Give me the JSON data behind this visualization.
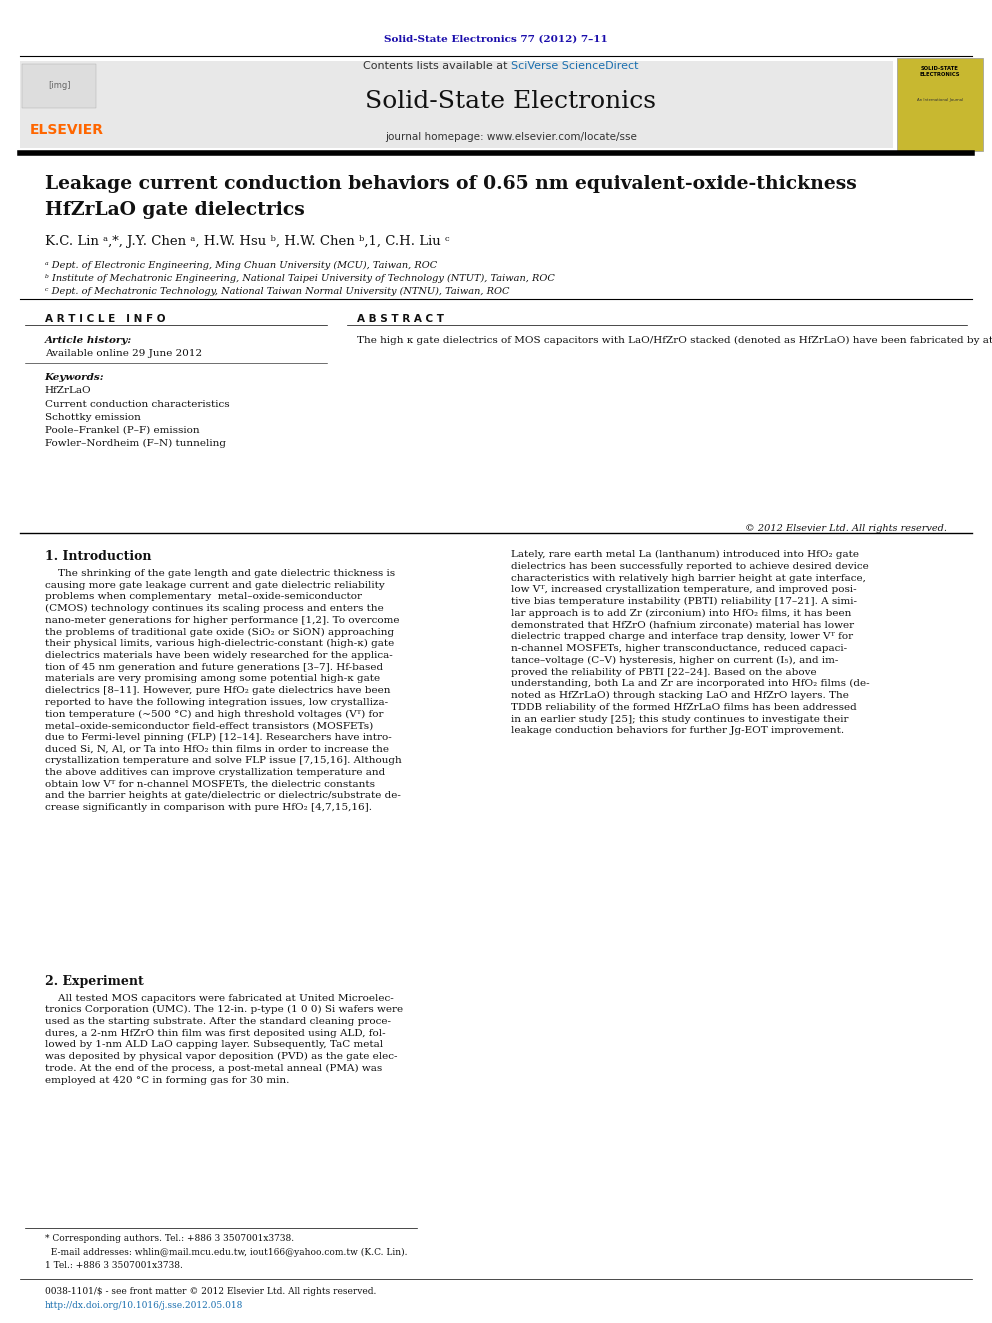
{
  "page_width": 9.92,
  "page_height": 13.23,
  "bg_color": "#ffffff",
  "journal_ref": "Solid-State Electronics 77 (2012) 7–11",
  "journal_ref_color": "#1a0dab",
  "contents_text": "Contents lists available at ",
  "sciverse_text": "SciVerse ScienceDirect",
  "sciverse_color": "#1a6faf",
  "journal_name": "Solid-State Electronics",
  "journal_homepage": "journal homepage: www.elsevier.com/locate/sse",
  "header_bg": "#e8e8e8",
  "elsevier_color": "#ff6600",
  "paper_title_line1": "Leakage current conduction behaviors of 0.65 nm equivalent-oxide-thickness",
  "paper_title_line2": "HfZrLaO gate dielectrics",
  "authors": "K.C. Lin ᵃ,*, J.Y. Chen ᵃ, H.W. Hsu ᵇ, H.W. Chen ᵇ,1, C.H. Liu ᶜ",
  "affil_a": "ᵃ Dept. of Electronic Engineering, Ming Chuan University (MCU), Taiwan, ROC",
  "affil_b": "ᵇ Institute of Mechatronic Engineering, National Taipei University of Technology (NTUT), Taiwan, ROC",
  "affil_c": "ᶜ Dept. of Mechatronic Technology, National Taiwan Normal University (NTNU), Taiwan, ROC",
  "article_info_header": "ARTICLE INFO",
  "abstract_header": "ABSTRACT",
  "article_history_label": "Article history:",
  "available_online": "Available online 29 June 2012",
  "keywords_label": "Keywords:",
  "keywords": [
    "HfZrLaO",
    "Current conduction characteristics",
    "Schottky emission",
    "Poole–Frankel (P–F) emission",
    "Fowler–Nordheim (F–N) tunneling"
  ],
  "abstract_text": "The high κ gate dielectrics of MOS capacitors with LaO/HfZrO stacked (denoted as HfZrLaO) have been fabricated by atomic-layer-deposited (ALD). In this study, the data show that the gate leakage current density (J₉) is about 1.9 A/cm², and the equivalent oxide thickness (EOT) is about 0.65 nm with quantum effects taken into account. The analysis of the leakage current conduction characteristics is based on the temperature dependence of the leakage current from 300 to 475 K. The dominant current conduction behaviors are Schottky emission in the region of low electric fields (<1 MV/cm) and high temperatures (450–475 K), Poole–Frankel (P–F) emission in the region of medium electric fields (2.3–3.83 MV/cm) and low temperatures (300–350 K), and Fowler–Nordheim (F–N) tunneling in the region of high electric fields (>4 MV/cm) and low temperatures (<300 K). The electron barrier height (Φʙ) at gate interface and the trap energy level (Φₜ) in the dielectric are extracted to be 1.07 and 1.38 eV, respectively.",
  "copyright": "© 2012 Elsevier Ltd. All rights reserved.",
  "intro_header": "1. Introduction",
  "intro_col1": "The shrinking of the gate length and gate dielectric thickness is\ncausing more gate leakage current and gate dielectric reliability\nproblems when complementary  metal–oxide-semiconductor\n(CMOS) technology continues its scaling process and enters the\nnano-meter generations for higher performance [1,2]. To overcome\nthe problems of traditional gate oxide (SiO₂ or SiON) approaching\ntheir physical limits, various high-dielectric-constant (high-κ) gate\ndielectrics materials have been widely researched for the applica-\ntion of 45 nm generation and future generations [3–7]. Hf-based\nmaterials are very promising among some potential high-κ gate\ndielectrics [8–11]. However, pure HfO₂ gate dielectrics have been\nreported to have the following integration issues, low crystalliza-\ntion temperature (~500 °C) and high threshold voltages (Vᵀ) for\nmetal–oxide-semiconductor field-effect transistors (MOSFETs)\ndue to Fermi-level pinning (FLP) [12–14]. Researchers have intro-\nduced Si, N, Al, or Ta into HfO₂ thin films in order to increase the\ncrystallization temperature and solve FLP issue [7,15,16]. Although\nthe above additives can improve crystallization temperature and\nobtain low Vᵀ for n-channel MOSFETs, the dielectric constants\nand the barrier heights at gate/dielectric or dielectric/substrate de-\ncrease significantly in comparison with pure HfO₂ [4,7,15,16].",
  "intro_col2": "Lately, rare earth metal La (lanthanum) introduced into HfO₂ gate\ndielectrics has been successfully reported to achieve desired device\ncharacteristics with relatively high barrier height at gate interface,\nlow Vᵀ, increased crystallization temperature, and improved posi-\ntive bias temperature instability (PBTI) reliability [17–21]. A simi-\nlar approach is to add Zr (zirconium) into HfO₂ films, it has been\ndemonstrated that HfZrO (hafnium zirconate) material has lower\ndielectric trapped charge and interface trap density, lower Vᵀ for\nn-channel MOSFETs, higher transconductance, reduced capaci-\ntance–voltage (C–V) hysteresis, higher on current (I₅), and im-\nproved the reliability of PBTI [22–24]. Based on the above\nunderstanding, both La and Zr are incorporated into HfO₂ films (de-\nnoted as HfZrLaO) through stacking LaO and HfZrO layers. The\nTDDB reliability of the formed HfZrLaO films has been addressed\nin an earlier study [25]; this study continues to investigate their\nleakage conduction behaviors for further Jg-EOT improvement.",
  "experiment_header": "2. Experiment",
  "experiment_text": "    All tested MOS capacitors were fabricated at United Microelec-\ntronics Corporation (UMC). The 12-in. p-type (1 0 0) Si wafers were\nused as the starting substrate. After the standard cleaning proce-\ndures, a 2-nm HfZrO thin film was first deposited using ALD, fol-\nlowed by 1-nm ALD LaO capping layer. Subsequently, TaC metal\nwas deposited by physical vapor deposition (PVD) as the gate elec-\ntrode. At the end of the process, a post-metal anneal (PMA) was\nemployed at 420 °C in forming gas for 30 min.",
  "footnote1": "* Corresponding authors. Tel.: +886 3 3507001x3738.",
  "footnote2": "  E-mail addresses: whlin@mail.mcu.edu.tw, iout166@yahoo.com.tw (K.C. Lin).",
  "footnote3": "1 Tel.: +886 3 3507001x3738.",
  "issn_text": "0038-1101/$ - see front matter © 2012 Elsevier Ltd. All rights reserved.",
  "doi_text": "http://dx.doi.org/10.1016/j.sse.2012.05.018",
  "doi_color": "#1a6faf"
}
